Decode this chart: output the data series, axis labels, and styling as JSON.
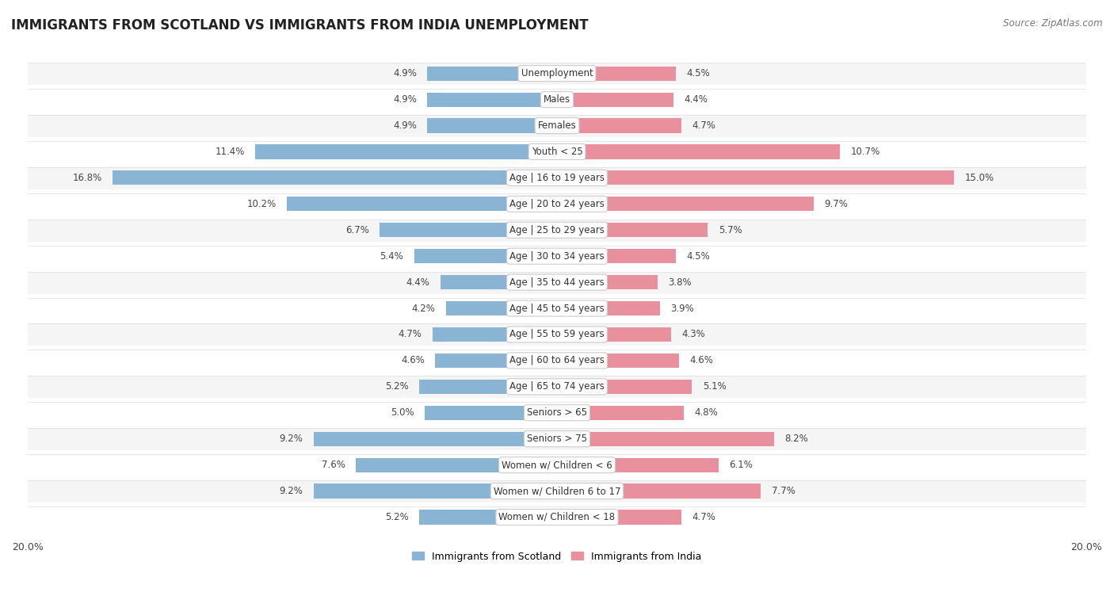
{
  "title": "IMMIGRANTS FROM SCOTLAND VS IMMIGRANTS FROM INDIA UNEMPLOYMENT",
  "source": "Source: ZipAtlas.com",
  "categories": [
    "Unemployment",
    "Males",
    "Females",
    "Youth < 25",
    "Age | 16 to 19 years",
    "Age | 20 to 24 years",
    "Age | 25 to 29 years",
    "Age | 30 to 34 years",
    "Age | 35 to 44 years",
    "Age | 45 to 54 years",
    "Age | 55 to 59 years",
    "Age | 60 to 64 years",
    "Age | 65 to 74 years",
    "Seniors > 65",
    "Seniors > 75",
    "Women w/ Children < 6",
    "Women w/ Children 6 to 17",
    "Women w/ Children < 18"
  ],
  "scotland_values": [
    4.9,
    4.9,
    4.9,
    11.4,
    16.8,
    10.2,
    6.7,
    5.4,
    4.4,
    4.2,
    4.7,
    4.6,
    5.2,
    5.0,
    9.2,
    7.6,
    9.2,
    5.2
  ],
  "india_values": [
    4.5,
    4.4,
    4.7,
    10.7,
    15.0,
    9.7,
    5.7,
    4.5,
    3.8,
    3.9,
    4.3,
    4.6,
    5.1,
    4.8,
    8.2,
    6.1,
    7.7,
    4.7
  ],
  "scotland_color": "#8ab4d4",
  "india_color": "#e8909e",
  "scotland_label": "Immigrants from Scotland",
  "india_label": "Immigrants from India",
  "xlim": 20.0,
  "background_color": "#ffffff",
  "row_color_odd": "#f5f5f5",
  "row_color_even": "#ffffff",
  "title_fontsize": 12,
  "label_fontsize": 8.5,
  "value_fontsize": 8.5
}
